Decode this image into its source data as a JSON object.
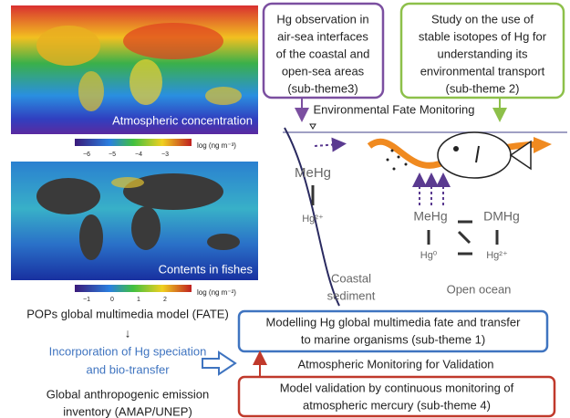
{
  "maps": [
    {
      "caption": "Atmospheric concentration",
      "colorbar_ticks": [
        "−6",
        "−5",
        "−4",
        "−3"
      ],
      "unit": "log (ng m⁻³)"
    },
    {
      "caption": "Contents in fishes",
      "colorbar_ticks": [
        "−1",
        "0",
        "1",
        "2"
      ],
      "unit": "log (ng m⁻²)"
    }
  ],
  "left_text": {
    "model": "POPs  global multimedia model (FATE)",
    "arrow": "↓",
    "incorporation": [
      "Incorporation of  Hg speciation",
      "and bio-transfer"
    ],
    "inventory": [
      "Global anthropogenic emission",
      "inventory (AMAP/UNEP)"
    ]
  },
  "boxes": {
    "observation": [
      "Hg observation in",
      "air-sea interfaces",
      "of the coastal and",
      "open-sea areas",
      "(sub-theme3)"
    ],
    "isotopes": [
      "Study on the use of",
      "stable isotopes of Hg for",
      "understanding its",
      "environmental transport",
      "(sub-theme 2)"
    ],
    "modelling": [
      "Modelling Hg global multimedia fate and transfer",
      "to marine organisms (sub-theme 1)"
    ],
    "validation": [
      "Model   validation by continuous monitoring of",
      "atmospheric mercury (sub-theme 4)"
    ]
  },
  "labels": {
    "fate_monitoring": "Environmental Fate Monitoring",
    "atm_monitoring": "Atmospheric Monitoring for Validation"
  },
  "diagram": {
    "mehg_coastal": "MeHg",
    "hg2_coastal": "Hg²⁺",
    "coastal": [
      "Coastal",
      "sediment"
    ],
    "open_ocean": "Open ocean",
    "mehg": "MeHg",
    "dmhg": "DMHg",
    "hg0": "Hg⁰",
    "hg2": "Hg²⁺"
  }
}
